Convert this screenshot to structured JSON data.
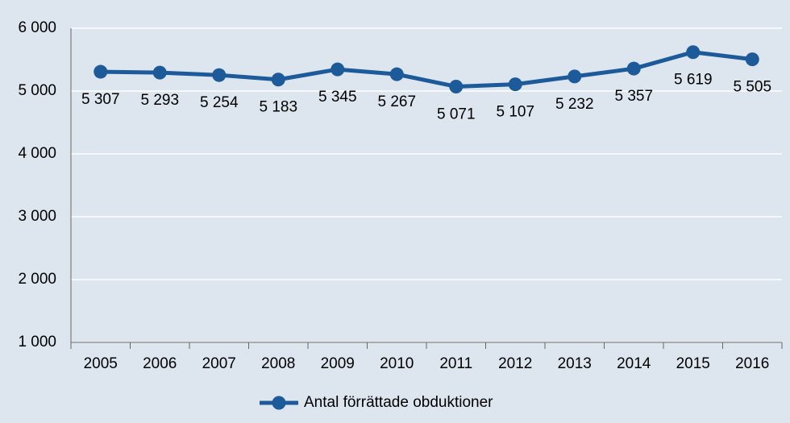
{
  "chart_data": {
    "type": "line",
    "categories": [
      "2005",
      "2006",
      "2007",
      "2008",
      "2009",
      "2010",
      "2011",
      "2012",
      "2013",
      "2014",
      "2015",
      "2016"
    ],
    "series": [
      {
        "name": "Antal förrättade obduktioner",
        "color": "#1d5a9a",
        "values": [
          5307,
          5293,
          5254,
          5183,
          5345,
          5267,
          5071,
          5107,
          5232,
          5357,
          5619,
          5505
        ],
        "value_labels": [
          "5 307",
          "5 293",
          "5 254",
          "5 183",
          "5 345",
          "5 267",
          "5 071",
          "5 107",
          "5 232",
          "5 357",
          "5 619",
          "5 505"
        ]
      }
    ],
    "ylim": [
      1000,
      6000
    ],
    "yticks": [
      {
        "value": 1000,
        "label": "1 000"
      },
      {
        "value": 2000,
        "label": "2 000"
      },
      {
        "value": 3000,
        "label": "3 000"
      },
      {
        "value": 4000,
        "label": "4 000"
      },
      {
        "value": 5000,
        "label": "5 000"
      },
      {
        "value": 6000,
        "label": "6 000"
      }
    ],
    "grid": true,
    "legend": "bottom"
  }
}
